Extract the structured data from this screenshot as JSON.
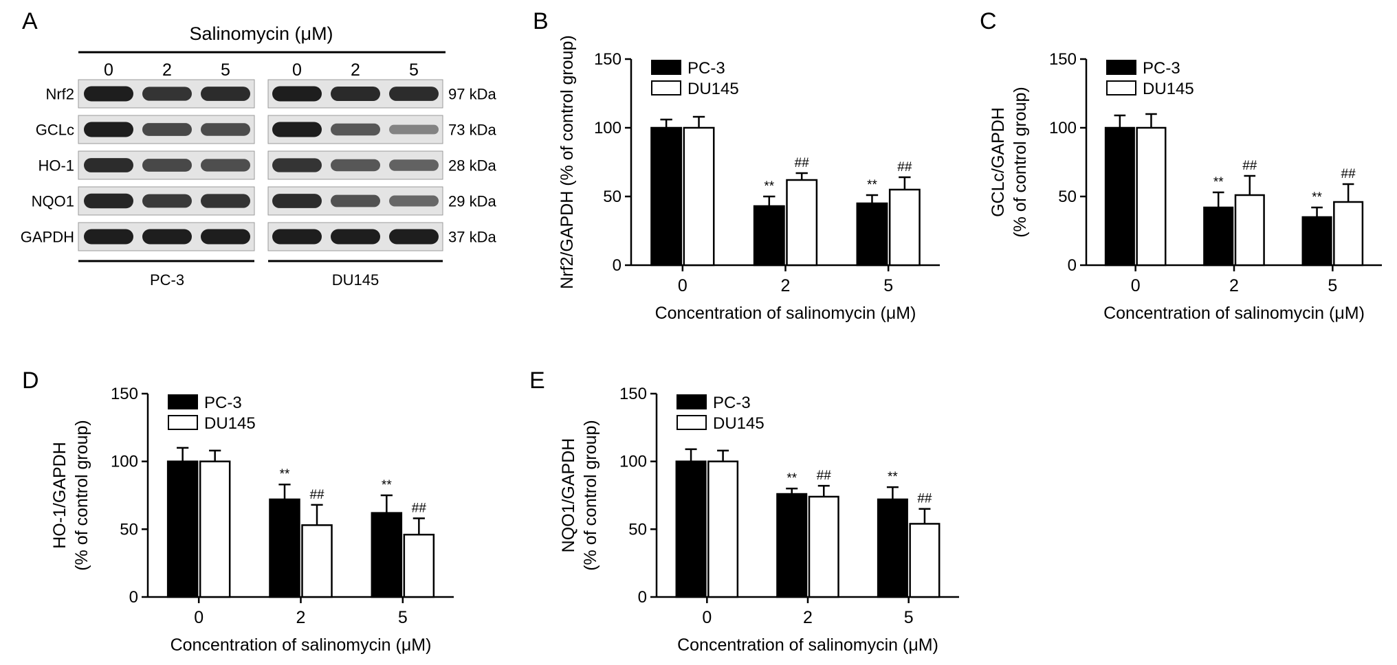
{
  "western_blot": {
    "panel_letter": "A",
    "treatment_label": "Salinomycin (μM)",
    "cell_lines": [
      "PC-3",
      "DU145"
    ],
    "concentrations": [
      "0",
      "2",
      "5"
    ],
    "proteins": [
      {
        "name": "Nrf2",
        "size": "97 kDa",
        "pc3": [
          1.0,
          0.85,
          0.9
        ],
        "du145": [
          1.0,
          0.92,
          0.9
        ]
      },
      {
        "name": "GCLc",
        "size": "73 kDa",
        "pc3": [
          1.0,
          0.72,
          0.7
        ],
        "du145": [
          1.0,
          0.62,
          0.32
        ]
      },
      {
        "name": "HO-1",
        "size": "28 kDa",
        "pc3": [
          0.9,
          0.72,
          0.68
        ],
        "du145": [
          0.85,
          0.62,
          0.55
        ]
      },
      {
        "name": "NQO1",
        "size": "29 kDa",
        "pc3": [
          0.95,
          0.82,
          0.85
        ],
        "du145": [
          0.9,
          0.65,
          0.5
        ]
      },
      {
        "name": "GAPDH",
        "size": "37 kDa",
        "pc3": [
          1.0,
          1.0,
          1.0
        ],
        "du145": [
          1.0,
          1.0,
          1.0
        ]
      }
    ]
  },
  "colors": {
    "pc3": "#000000",
    "du145": "#ffffff",
    "axis": "#000000",
    "blot_bg": "#e4e4e4",
    "band": "#1e1e1e"
  },
  "chart_data": [
    {
      "panel": "B",
      "type": "bar",
      "categories": [
        "0",
        "2",
        "5"
      ],
      "series": [
        {
          "name": "PC-3",
          "values": [
            100,
            43,
            45
          ],
          "errors": [
            6,
            7,
            6
          ]
        },
        {
          "name": "DU145",
          "values": [
            100,
            62,
            55
          ],
          "errors": [
            8,
            5,
            9
          ]
        }
      ],
      "ylabel_lines": [
        "Nrf2/GAPDH (% of control group)"
      ],
      "xlabel": "Concentration of salinomycin (μM)",
      "ylim": [
        0,
        150
      ],
      "yticks": [
        "0",
        "50",
        "100",
        "150"
      ],
      "annotations": [
        [
          "",
          "**",
          "**"
        ],
        [
          "",
          "##",
          "##"
        ]
      ],
      "legend_position": "top-left"
    },
    {
      "panel": "C",
      "type": "bar",
      "categories": [
        "0",
        "2",
        "5"
      ],
      "series": [
        {
          "name": "PC-3",
          "values": [
            100,
            42,
            35
          ],
          "errors": [
            9,
            11,
            7
          ]
        },
        {
          "name": "DU145",
          "values": [
            100,
            51,
            46
          ],
          "errors": [
            10,
            14,
            13
          ]
        }
      ],
      "ylabel_lines": [
        "GCLc/GAPDH",
        "(% of control group)"
      ],
      "xlabel": "Concentration of salinomycin (μM)",
      "ylim": [
        0,
        150
      ],
      "yticks": [
        "0",
        "50",
        "100",
        "150"
      ],
      "annotations": [
        [
          "",
          "**",
          "**"
        ],
        [
          "",
          "##",
          "##"
        ]
      ],
      "legend_position": "top-left"
    },
    {
      "panel": "D",
      "type": "bar",
      "categories": [
        "0",
        "2",
        "5"
      ],
      "series": [
        {
          "name": "PC-3",
          "values": [
            100,
            72,
            62
          ],
          "errors": [
            10,
            11,
            13
          ]
        },
        {
          "name": "DU145",
          "values": [
            100,
            53,
            46
          ],
          "errors": [
            8,
            15,
            12
          ]
        }
      ],
      "ylabel_lines": [
        "HO-1/GAPDH",
        "(% of control group)"
      ],
      "xlabel": "Concentration of salinomycin (μM)",
      "ylim": [
        0,
        150
      ],
      "yticks": [
        "0",
        "50",
        "100",
        "150"
      ],
      "annotations": [
        [
          "",
          "**",
          "**"
        ],
        [
          "",
          "##",
          "##"
        ]
      ],
      "legend_position": "top-left"
    },
    {
      "panel": "E",
      "type": "bar",
      "categories": [
        "0",
        "2",
        "5"
      ],
      "series": [
        {
          "name": "PC-3",
          "values": [
            100,
            76,
            72
          ],
          "errors": [
            9,
            4,
            9
          ]
        },
        {
          "name": "DU145",
          "values": [
            100,
            74,
            54
          ],
          "errors": [
            8,
            8,
            11
          ]
        }
      ],
      "ylabel_lines": [
        "NQO1/GAPDH",
        "(% of control group)"
      ],
      "xlabel": "Concentration of salinomycin (μM)",
      "ylim": [
        0,
        150
      ],
      "yticks": [
        "0",
        "50",
        "100",
        "150"
      ],
      "annotations": [
        [
          "",
          "**",
          "**"
        ],
        [
          "",
          "##",
          "##"
        ]
      ],
      "legend_position": "top-left"
    }
  ]
}
